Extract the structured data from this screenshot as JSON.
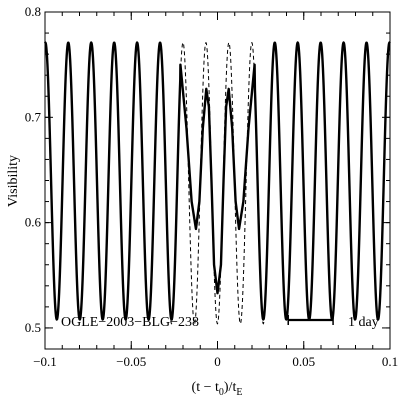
{
  "chart_data": {
    "type": "line",
    "xlabel": "(t − t0)/tE",
    "xlabel_parts": [
      "(t − t",
      "0",
      ")/t",
      "E"
    ],
    "ylabel": "Visibility",
    "xlim": [
      -0.1,
      0.1
    ],
    "ylim": [
      0.48,
      0.8
    ],
    "x_ticks": [
      -0.1,
      -0.05,
      0,
      0.05,
      0.1
    ],
    "x_tick_labels": [
      "−0.1",
      "−0.05",
      "0",
      "0.05",
      "0.1"
    ],
    "y_ticks": [
      0.5,
      0.6,
      0.7,
      0.8
    ],
    "y_tick_labels": [
      "0.5",
      "0.6",
      "0.7",
      "0.8"
    ],
    "annotations": {
      "event_name": "OGLE−2003−BLG−238",
      "scale_bar_label": "1 day",
      "scale_bar_x": [
        0.041,
        0.067
      ]
    },
    "series": [
      {
        "style": "solid",
        "oscillation": {
          "period": 0.0133,
          "max": 0.771,
          "min": 0.508,
          "peak_x": -0.0865
        },
        "caustic_region": {
          "x_range": [
            -0.0215,
            0.0215
          ],
          "points": [
            [
              -0.0215,
              0.75
            ],
            [
              -0.018,
              0.69
            ],
            [
              -0.015,
              0.62
            ],
            [
              -0.0125,
              0.594
            ],
            [
              -0.0105,
              0.62
            ],
            [
              -0.0085,
              0.69
            ],
            [
              -0.0065,
              0.727
            ],
            [
              -0.005,
              0.71
            ],
            [
              -0.0035,
              0.64
            ],
            [
              -0.002,
              0.56
            ],
            [
              0,
              0.533
            ],
            [
              0.002,
              0.56
            ],
            [
              0.0035,
              0.64
            ],
            [
              0.005,
              0.71
            ],
            [
              0.0065,
              0.727
            ],
            [
              0.0085,
              0.69
            ],
            [
              0.0105,
              0.62
            ],
            [
              0.0125,
              0.594
            ],
            [
              0.015,
              0.62
            ],
            [
              0.018,
              0.69
            ],
            [
              0.0215,
              0.75
            ]
          ]
        }
      },
      {
        "style": "dashed",
        "x_range": [
          -0.038,
          0.038
        ],
        "oscillation": {
          "period": 0.0133,
          "max": 0.771,
          "min": 0.504,
          "peak_x": -0.0865
        }
      }
    ]
  }
}
